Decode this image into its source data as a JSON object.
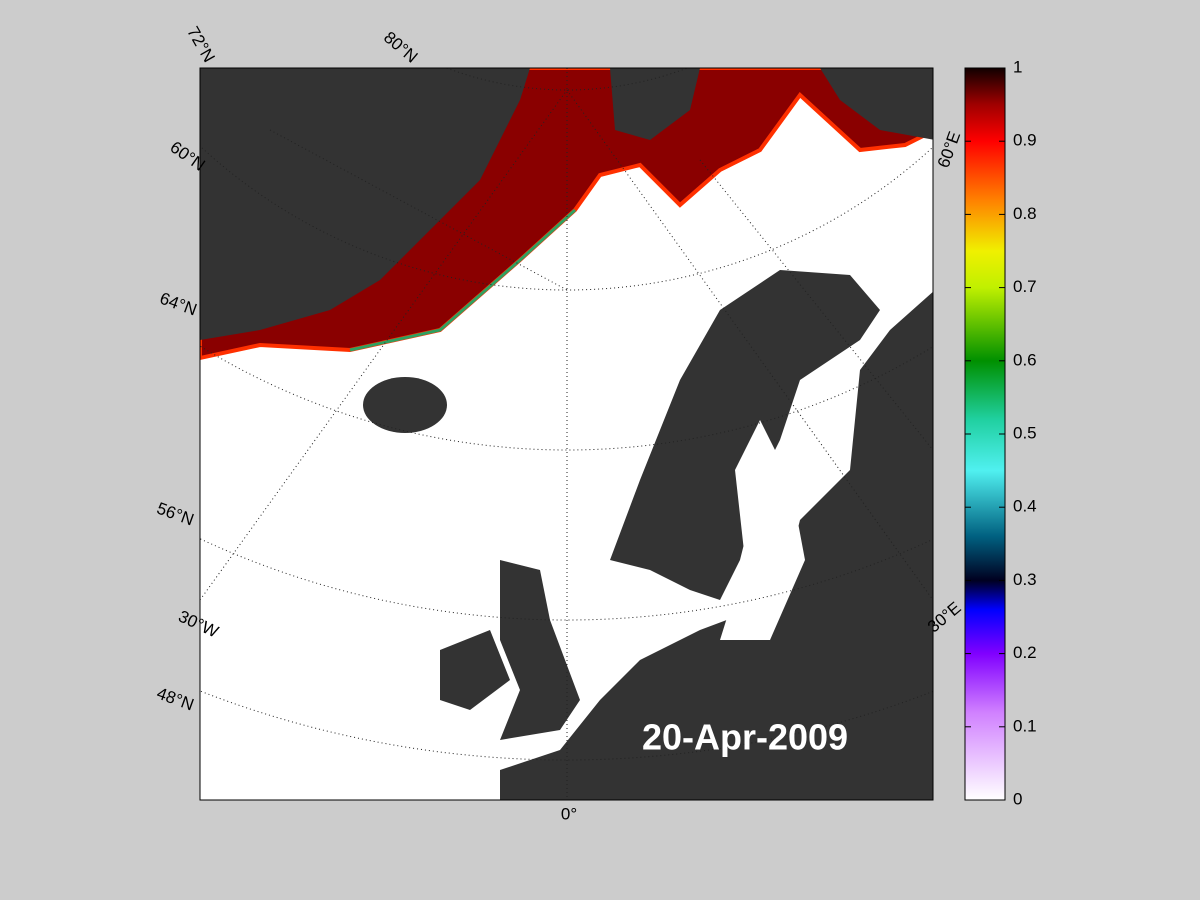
{
  "map": {
    "date": "20-Apr-2009",
    "grid_labels": [
      "72°N",
      "80°N",
      "60°N",
      "64°N",
      "56°N",
      "30°W",
      "48°N",
      "0°",
      "30°E",
      "60°E"
    ],
    "colorbar": {
      "lim": [
        0,
        1
      ],
      "ticks": [
        0,
        0.1,
        0.2,
        0.3,
        0.4,
        0.5,
        0.6,
        0.7,
        0.8,
        0.9,
        1
      ]
    }
  }
}
